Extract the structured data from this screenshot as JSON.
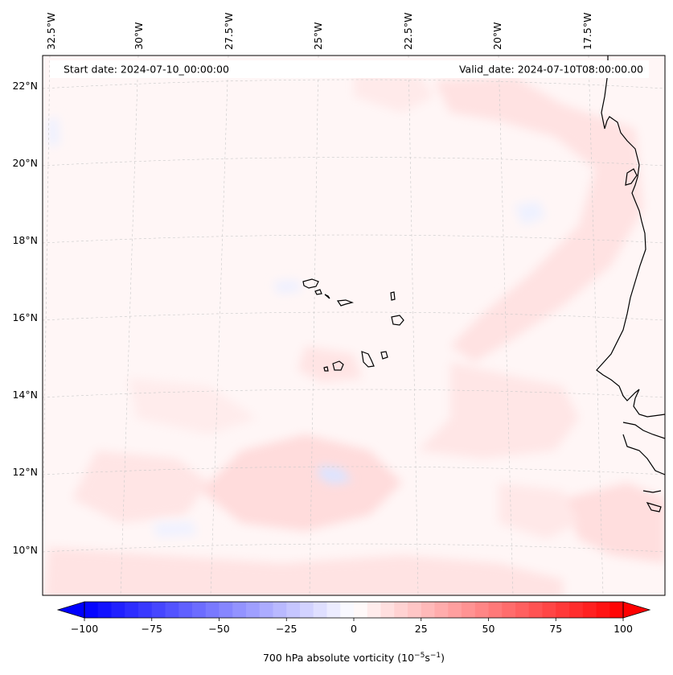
{
  "header": {
    "start_date": "Start date: 2024-07-10_00:00:00",
    "valid_date": "Valid_date: 2024-07-10T08:00:00.00"
  },
  "lon_labels": [
    "32.5°W",
    "30°W",
    "27.5°W",
    "25°W",
    "22.5°W",
    "20°W",
    "17.5°W"
  ],
  "lat_labels": [
    "22°N",
    "20°N",
    "18°N",
    "16°N",
    "14°N",
    "12°N",
    "10°N"
  ],
  "colorbar": {
    "label_prefix": "700 hPa absolute vorticity (10",
    "label_exp1": "−5",
    "label_mid": "s",
    "label_exp2": "−1",
    "label_suffix": ")",
    "ticks": [
      "−100",
      "−75",
      "−50",
      "−25",
      "0",
      "25",
      "50",
      "75",
      "100"
    ],
    "min": -100,
    "max": 100,
    "low_color": "#0000ff",
    "mid_color": "#ffffff",
    "high_color": "#ff0000"
  },
  "colors": {
    "background_field": "#fff6f6",
    "coastline": "#000000",
    "gridline": "#c8c8c8"
  }
}
